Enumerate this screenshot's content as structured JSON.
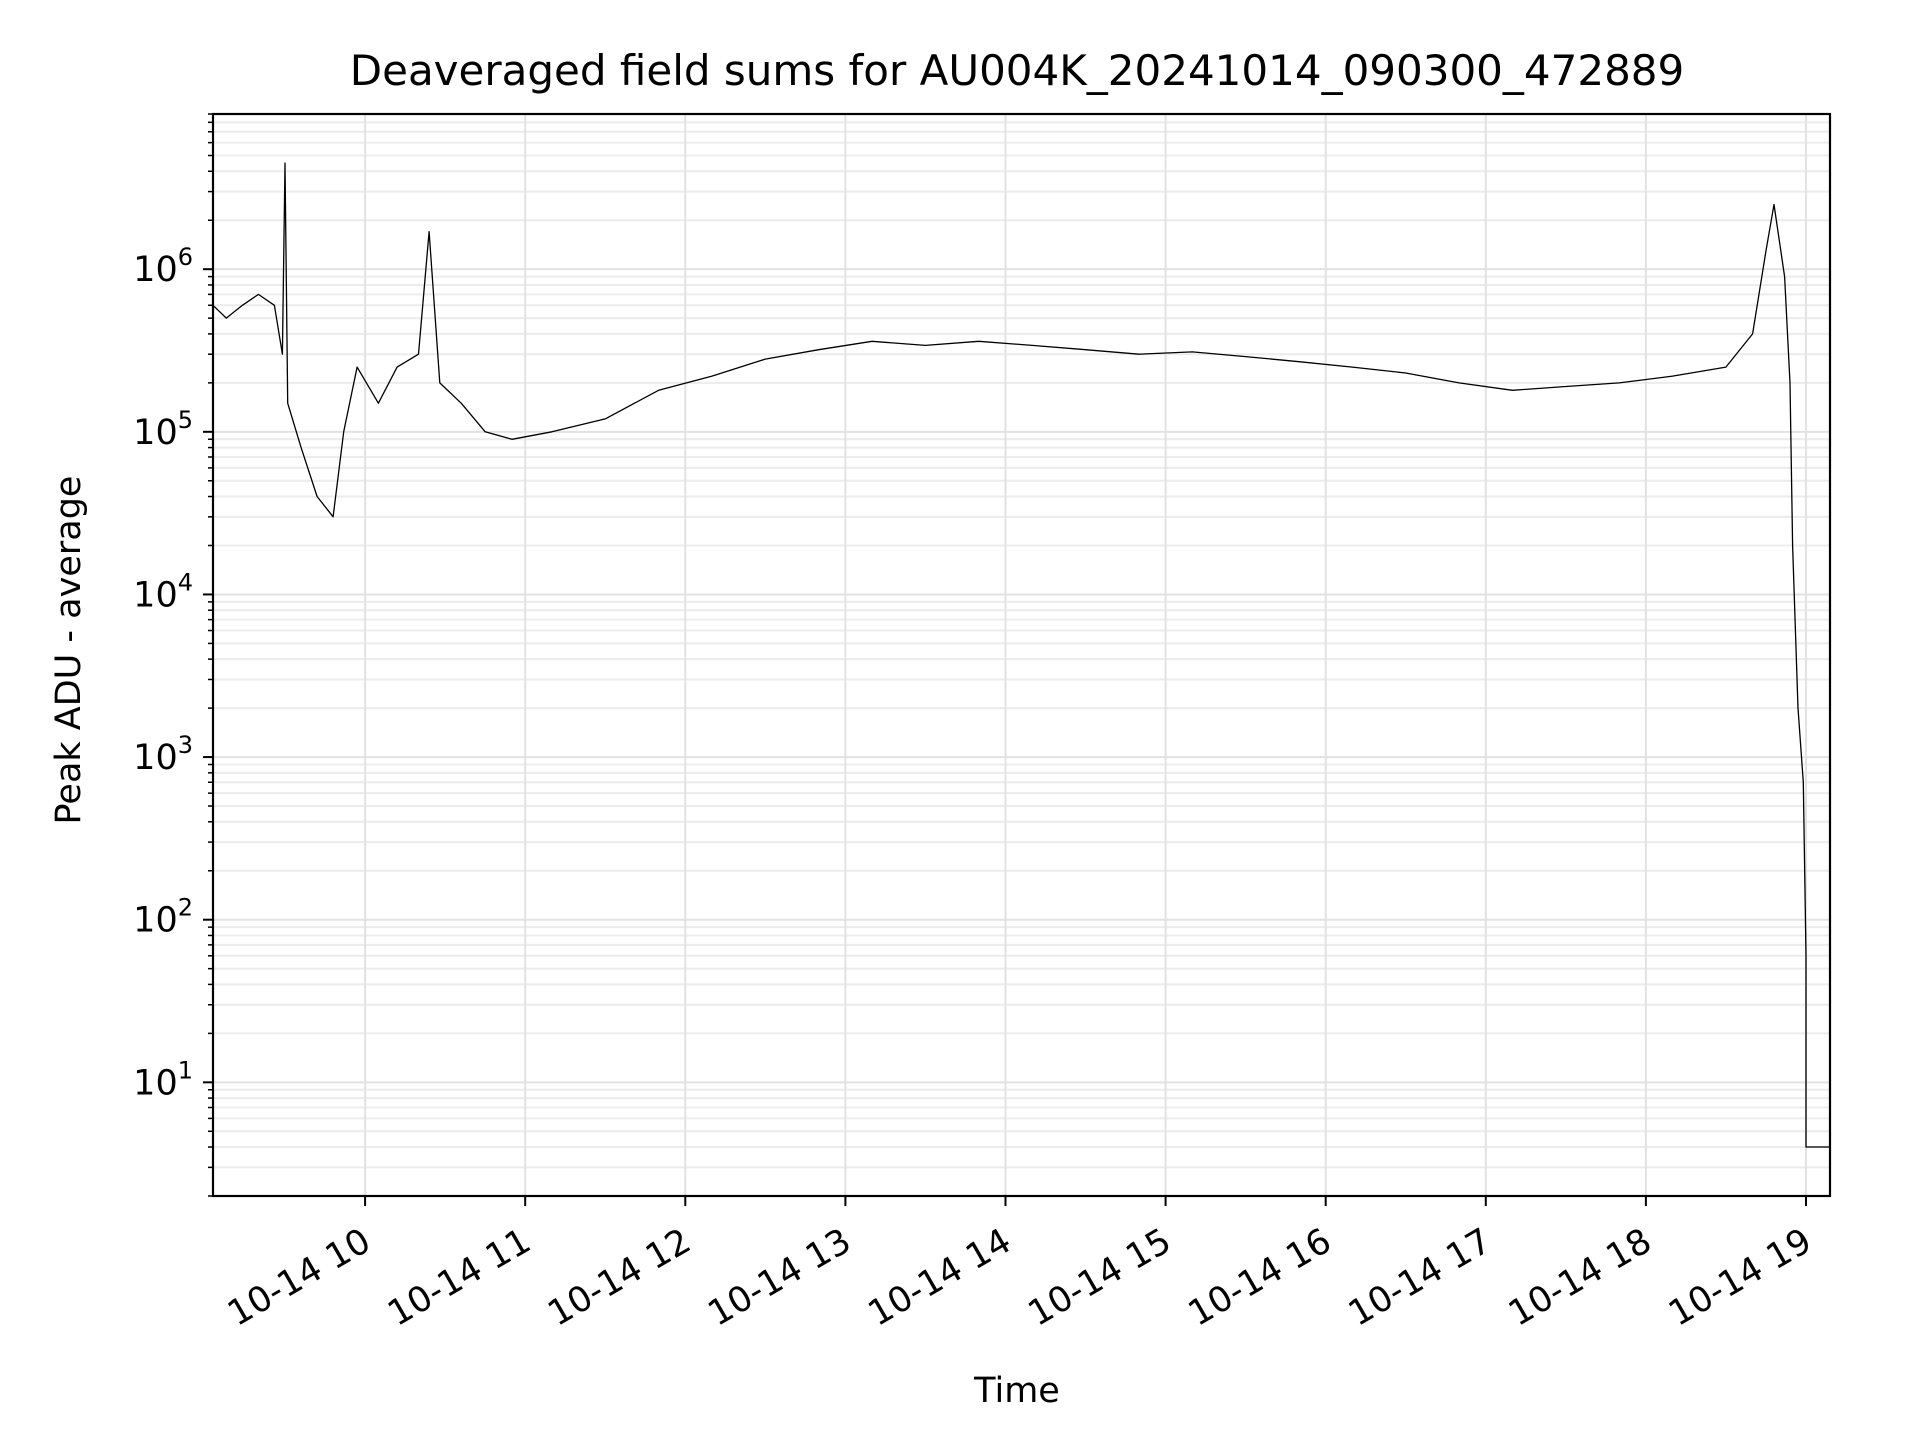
{
  "chart_data": {
    "type": "line",
    "title": "Deaveraged field sums for AU004K_20241014_090300_472889",
    "xlabel": "Time",
    "ylabel": "Peak ADU - average",
    "yscale": "log",
    "ylim": [
      2,
      9000000
    ],
    "xlim": [
      "2024-10-14 09:03",
      "2024-10-14 19:09"
    ],
    "grid": true,
    "line_color": "#000000",
    "x_ticks": [
      {
        "value": "2024-10-14 10:00",
        "label": "10-14 10"
      },
      {
        "value": "2024-10-14 11:00",
        "label": "10-14 11"
      },
      {
        "value": "2024-10-14 12:00",
        "label": "10-14 12"
      },
      {
        "value": "2024-10-14 13:00",
        "label": "10-14 13"
      },
      {
        "value": "2024-10-14 14:00",
        "label": "10-14 14"
      },
      {
        "value": "2024-10-14 15:00",
        "label": "10-14 15"
      },
      {
        "value": "2024-10-14 16:00",
        "label": "10-14 16"
      },
      {
        "value": "2024-10-14 17:00",
        "label": "10-14 17"
      },
      {
        "value": "2024-10-14 18:00",
        "label": "10-14 18"
      },
      {
        "value": "2024-10-14 19:00",
        "label": "10-14 19"
      }
    ],
    "y_ticks": [
      {
        "value": 10,
        "base": "10",
        "exp": "1"
      },
      {
        "value": 100,
        "base": "10",
        "exp": "2"
      },
      {
        "value": 1000,
        "base": "10",
        "exp": "3"
      },
      {
        "value": 10000,
        "base": "10",
        "exp": "4"
      },
      {
        "value": 100000,
        "base": "10",
        "exp": "5"
      },
      {
        "value": 1000000,
        "base": "10",
        "exp": "6"
      }
    ],
    "series": [
      {
        "values": [
          [
            "2024-10-14 09:03",
            600000
          ],
          [
            "2024-10-14 09:08",
            500000
          ],
          [
            "2024-10-14 09:14",
            600000
          ],
          [
            "2024-10-14 09:20",
            700000
          ],
          [
            "2024-10-14 09:26",
            600000
          ],
          [
            "2024-10-14 09:29",
            300000
          ],
          [
            "2024-10-14 09:30",
            4500000
          ],
          [
            "2024-10-14 09:31",
            150000
          ],
          [
            "2024-10-14 09:36",
            80000
          ],
          [
            "2024-10-14 09:42",
            40000
          ],
          [
            "2024-10-14 09:48",
            30000
          ],
          [
            "2024-10-14 09:52",
            100000
          ],
          [
            "2024-10-14 09:57",
            250000
          ],
          [
            "2024-10-14 10:05",
            150000
          ],
          [
            "2024-10-14 10:12",
            250000
          ],
          [
            "2024-10-14 10:20",
            300000
          ],
          [
            "2024-10-14 10:24",
            1700000
          ],
          [
            "2024-10-14 10:28",
            200000
          ],
          [
            "2024-10-14 10:36",
            150000
          ],
          [
            "2024-10-14 10:45",
            100000
          ],
          [
            "2024-10-14 10:55",
            90000
          ],
          [
            "2024-10-14 11:10",
            100000
          ],
          [
            "2024-10-14 11:30",
            120000
          ],
          [
            "2024-10-14 11:50",
            180000
          ],
          [
            "2024-10-14 12:10",
            220000
          ],
          [
            "2024-10-14 12:30",
            280000
          ],
          [
            "2024-10-14 12:50",
            320000
          ],
          [
            "2024-10-14 13:10",
            360000
          ],
          [
            "2024-10-14 13:30",
            340000
          ],
          [
            "2024-10-14 13:50",
            360000
          ],
          [
            "2024-10-14 14:10",
            340000
          ],
          [
            "2024-10-14 14:30",
            320000
          ],
          [
            "2024-10-14 14:50",
            300000
          ],
          [
            "2024-10-14 15:10",
            310000
          ],
          [
            "2024-10-14 15:30",
            290000
          ],
          [
            "2024-10-14 15:50",
            270000
          ],
          [
            "2024-10-14 16:10",
            250000
          ],
          [
            "2024-10-14 16:30",
            230000
          ],
          [
            "2024-10-14 16:50",
            200000
          ],
          [
            "2024-10-14 17:10",
            180000
          ],
          [
            "2024-10-14 17:30",
            190000
          ],
          [
            "2024-10-14 17:50",
            200000
          ],
          [
            "2024-10-14 18:10",
            220000
          ],
          [
            "2024-10-14 18:30",
            250000
          ],
          [
            "2024-10-14 18:40",
            400000
          ],
          [
            "2024-10-14 18:45",
            1300000
          ],
          [
            "2024-10-14 18:48",
            2500000
          ],
          [
            "2024-10-14 18:52",
            900000
          ],
          [
            "2024-10-14 18:54",
            200000
          ],
          [
            "2024-10-14 18:55",
            20000
          ],
          [
            "2024-10-14 18:57",
            2000
          ],
          [
            "2024-10-14 18:59",
            700
          ],
          [
            "2024-10-14 19:00",
            60
          ],
          [
            "2024-10-14 19:00",
            4
          ],
          [
            "2024-10-14 19:09",
            4
          ]
        ]
      }
    ]
  }
}
